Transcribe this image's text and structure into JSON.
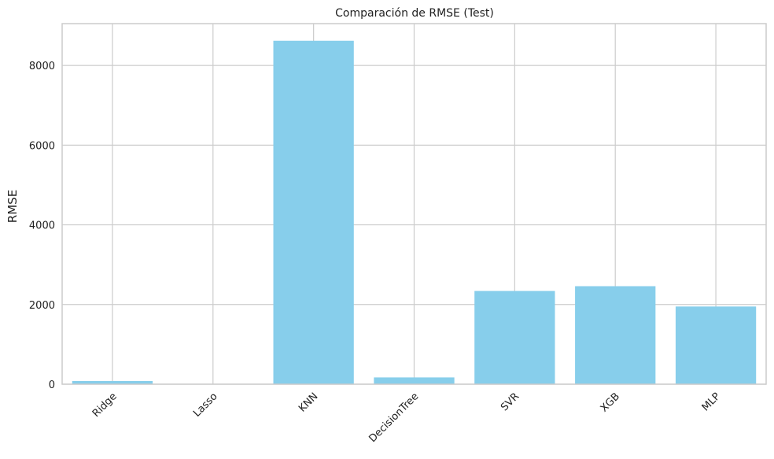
{
  "chart_data": {
    "type": "bar",
    "title": "Comparación de RMSE (Test)",
    "xlabel": "",
    "ylabel": "RMSE",
    "categories": [
      "Ridge",
      "Lasso",
      "KNN",
      "DecisionTree",
      "SVR",
      "XGB",
      "MLP"
    ],
    "values": [
      80,
      10,
      8620,
      170,
      2340,
      2460,
      1950
    ],
    "ylim": [
      0,
      9050
    ],
    "yticks": [
      0,
      2000,
      4000,
      6000,
      8000
    ],
    "ytick_labels": [
      "0",
      "2000",
      "4000",
      "6000",
      "8000"
    ],
    "grid": true,
    "bar_color": "#87CEEB",
    "grid_color": "#cccccc",
    "x_tick_rotation": "45"
  }
}
